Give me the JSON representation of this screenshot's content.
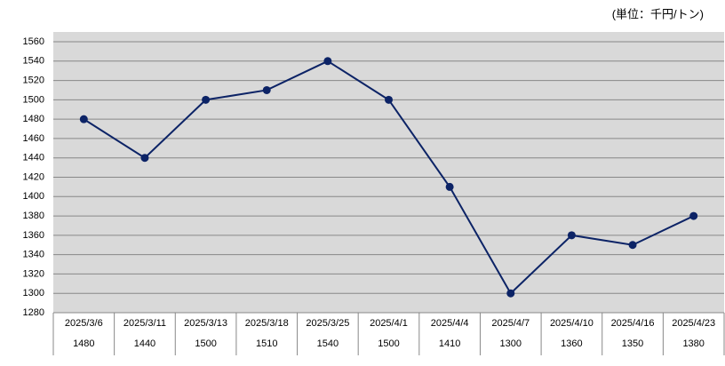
{
  "chart_data": {
    "type": "line",
    "unit_label": "(単位：千円/トン)",
    "categories": [
      "2025/3/6",
      "2025/3/11",
      "2025/3/13",
      "2025/3/18",
      "2025/3/25",
      "2025/4/1",
      "2025/4/4",
      "2025/4/7",
      "2025/4/10",
      "2025/4/16",
      "2025/4/23"
    ],
    "values": [
      1480,
      1440,
      1500,
      1510,
      1540,
      1500,
      1410,
      1300,
      1360,
      1350,
      1380
    ],
    "color": "#0c2366",
    "ylim": [
      1280,
      1560
    ],
    "yticks": [
      1280,
      1300,
      1320,
      1340,
      1360,
      1380,
      1400,
      1420,
      1440,
      1460,
      1480,
      1500,
      1520,
      1540,
      1560
    ],
    "grid": true
  }
}
